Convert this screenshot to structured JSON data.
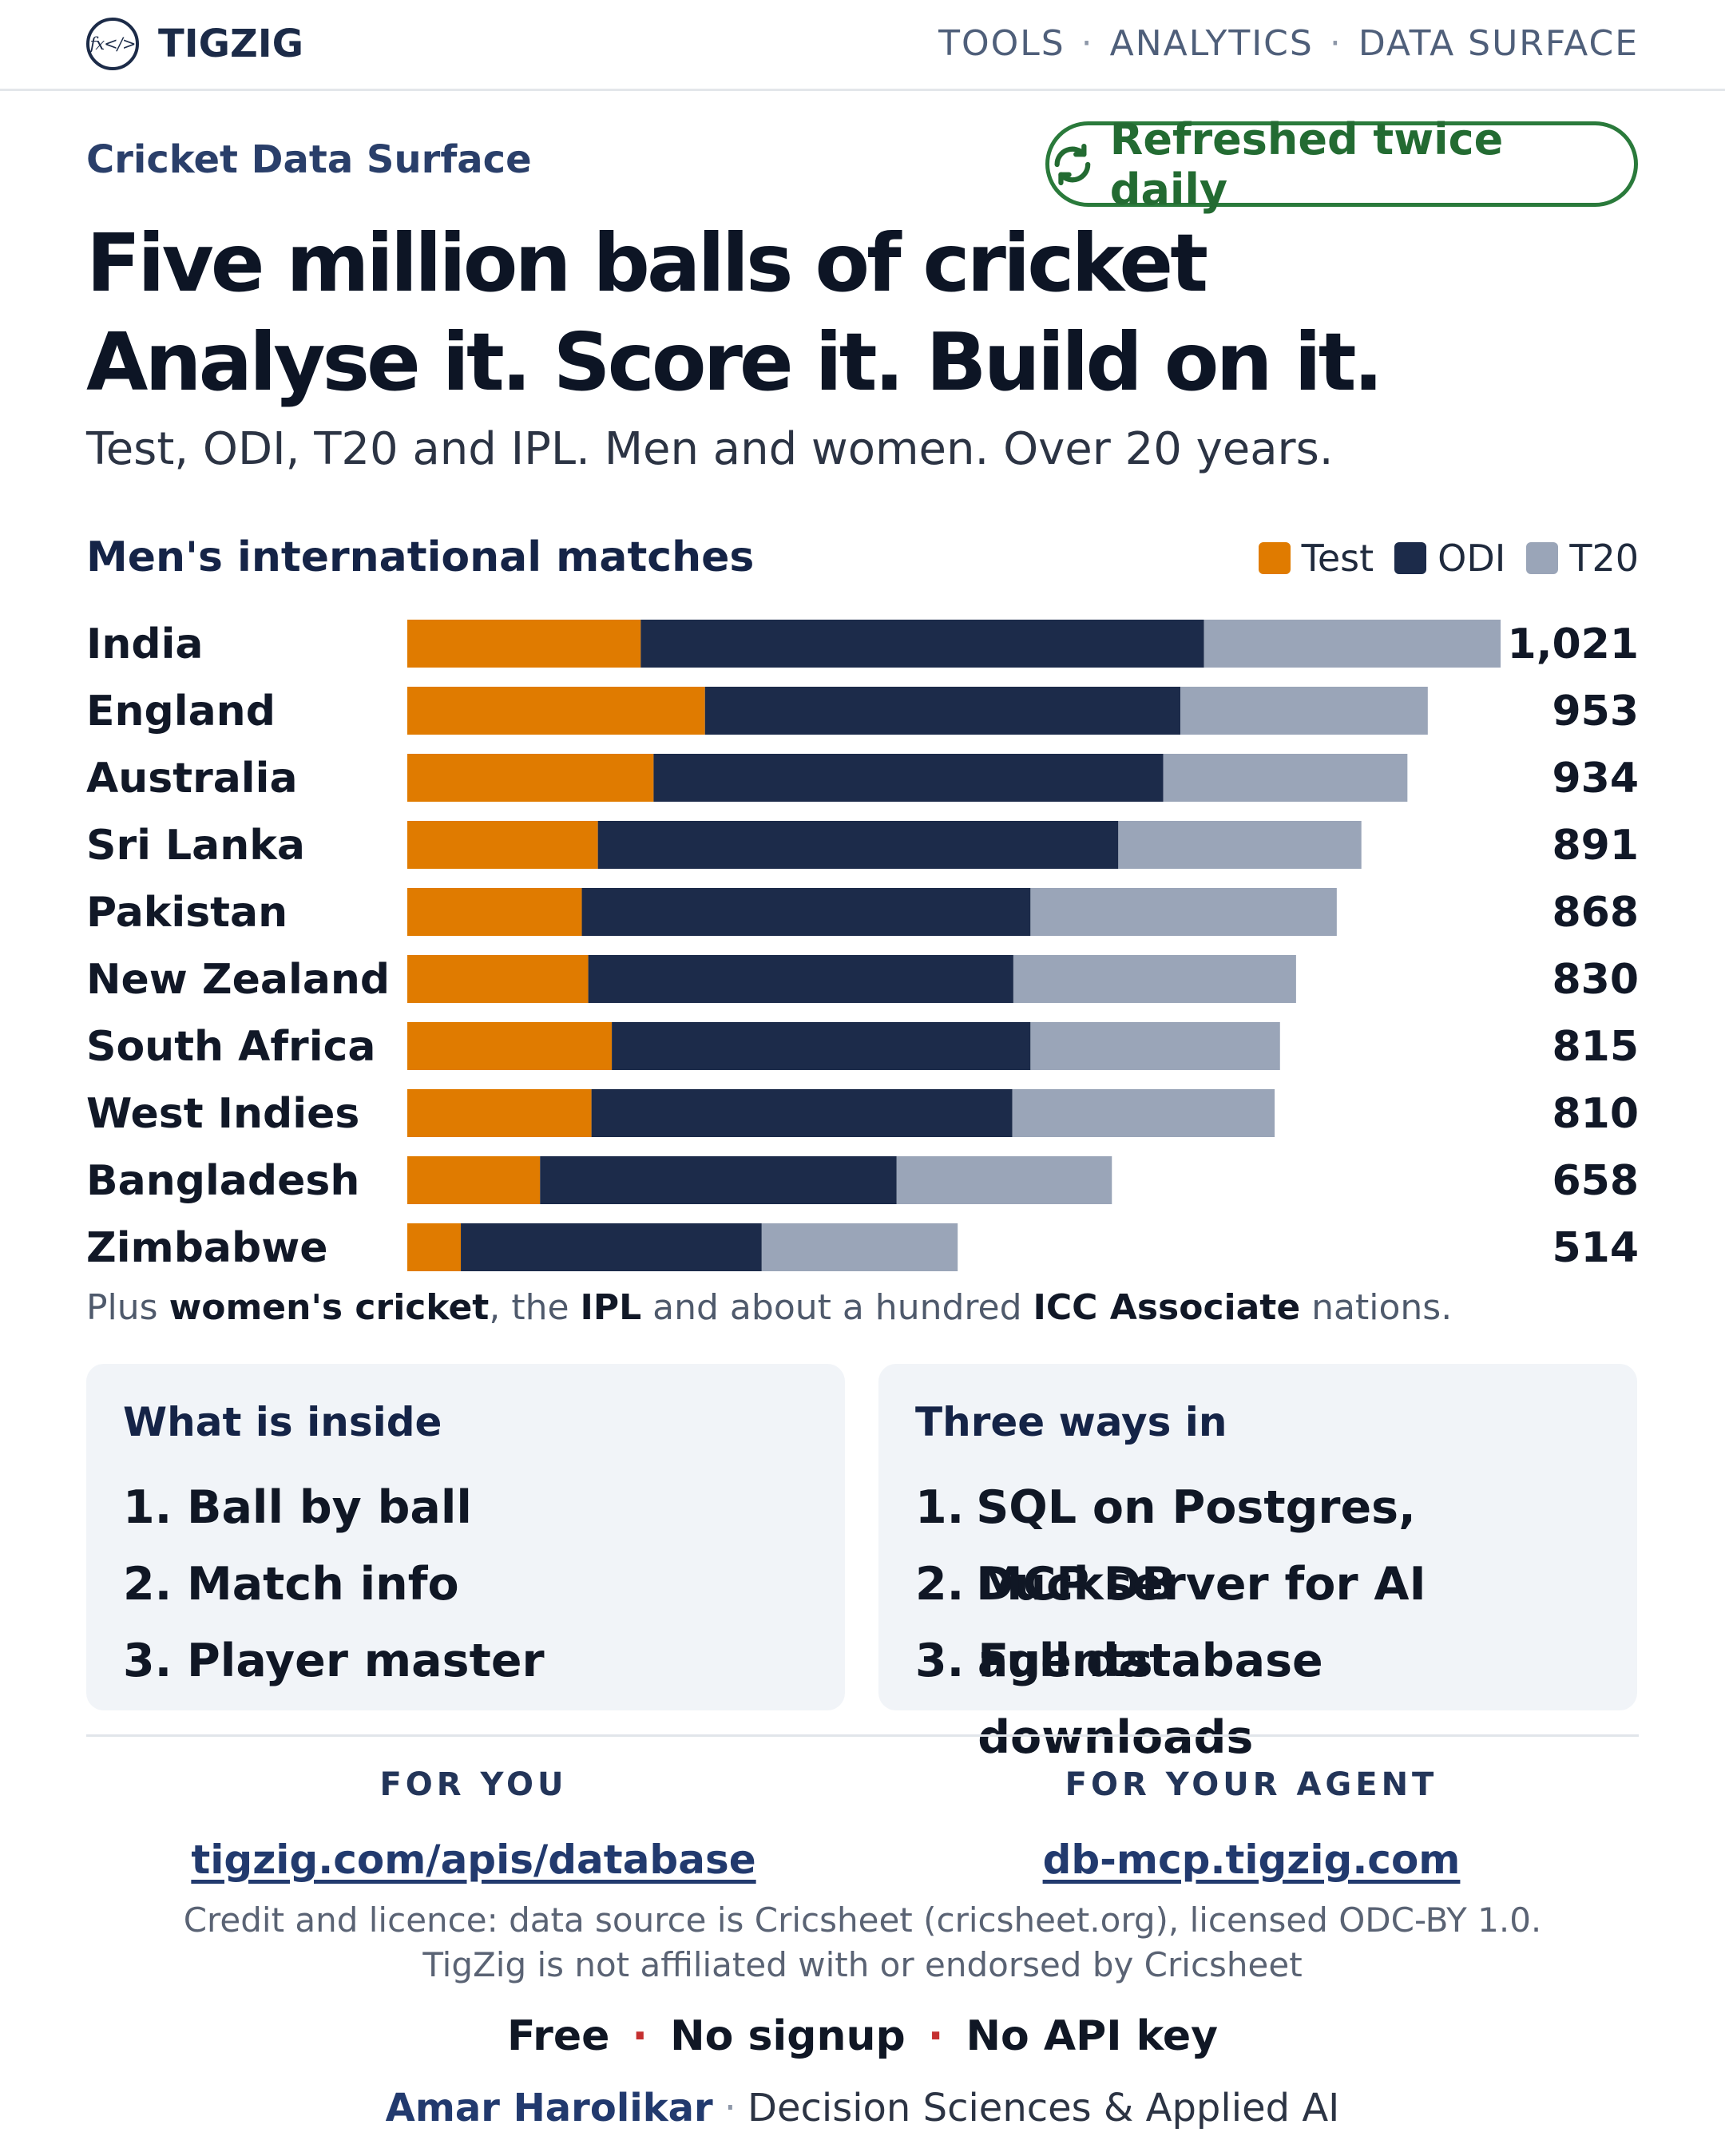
{
  "header": {
    "brand": "TIGZIG",
    "logo_text": "fx</>",
    "nav": [
      "TOOLS",
      "ANALYTICS",
      "DATA SURFACE"
    ]
  },
  "hero": {
    "eyebrow": "Cricket Data Surface",
    "badge": "Refreshed twice daily",
    "badge_icon": "refresh-icon",
    "headline_1": "Five million balls of cricket",
    "headline_2": "Analyse it. Score it. Build on it.",
    "subheadline": "Test, ODI, T20 and IPL. Men and women. Over 20 years."
  },
  "colors": {
    "test": "#e07b00",
    "odi": "#1c2b4a",
    "t20": "#9aa5b8",
    "accent_green": "#2a7a3b"
  },
  "chart_data": {
    "type": "bar",
    "orientation": "horizontal",
    "stacked": true,
    "title": "Men's international matches",
    "legend_position": "top-right",
    "categories": [
      "India",
      "England",
      "Australia",
      "Sri Lanka",
      "Pakistan",
      "New Zealand",
      "South Africa",
      "West Indies",
      "Bangladesh",
      "Zimbabwe"
    ],
    "series": [
      {
        "name": "Test",
        "values": [
          218,
          278,
          230,
          178,
          163,
          169,
          191,
          172,
          124,
          50
        ]
      },
      {
        "name": "ODI",
        "values": [
          526,
          444,
          476,
          486,
          419,
          397,
          391,
          393,
          333,
          281
        ]
      },
      {
        "name": "T20",
        "values": [
          277,
          231,
          228,
          227,
          286,
          264,
          233,
          245,
          201,
          183
        ]
      }
    ],
    "totals": [
      "1,021",
      "953",
      "934",
      "891",
      "868",
      "830",
      "815",
      "810",
      "658",
      "514"
    ],
    "xlim": [
      0,
      1021
    ],
    "grid": false
  },
  "chart_note": {
    "p1": "Plus ",
    "b1": "women's cricket",
    "p2": ", the ",
    "b2": "IPL",
    "p3": " and about a hundred ",
    "b3": "ICC Associate",
    "p4": " nations."
  },
  "cards": {
    "inside": {
      "title": "What is inside",
      "items": [
        "Ball by ball",
        "Match info",
        "Player master"
      ]
    },
    "ways": {
      "title": "Three ways in",
      "items": [
        "SQL on Postgres, DuckDB",
        "MCP server for AI agents",
        "Full database downloads"
      ]
    },
    "numbers": [
      "1.",
      "2.",
      "3."
    ]
  },
  "footer": {
    "you_label": "FOR YOU",
    "you_link": "tigzig.com/apis/database",
    "agent_label": "FOR YOUR AGENT",
    "agent_link": "db-mcp.tigzig.com",
    "credit_1": "Credit and licence: data source is Cricsheet (cricsheet.org), licensed ODC-BY 1.0.",
    "credit_2": "TigZig is not affiliated with or endorsed by Cricsheet",
    "tags": [
      "Free",
      "No signup",
      "No API key"
    ],
    "tag_separator": "·",
    "author_name": "Amar Harolikar",
    "author_role": "Decision Sciences & Applied AI"
  }
}
